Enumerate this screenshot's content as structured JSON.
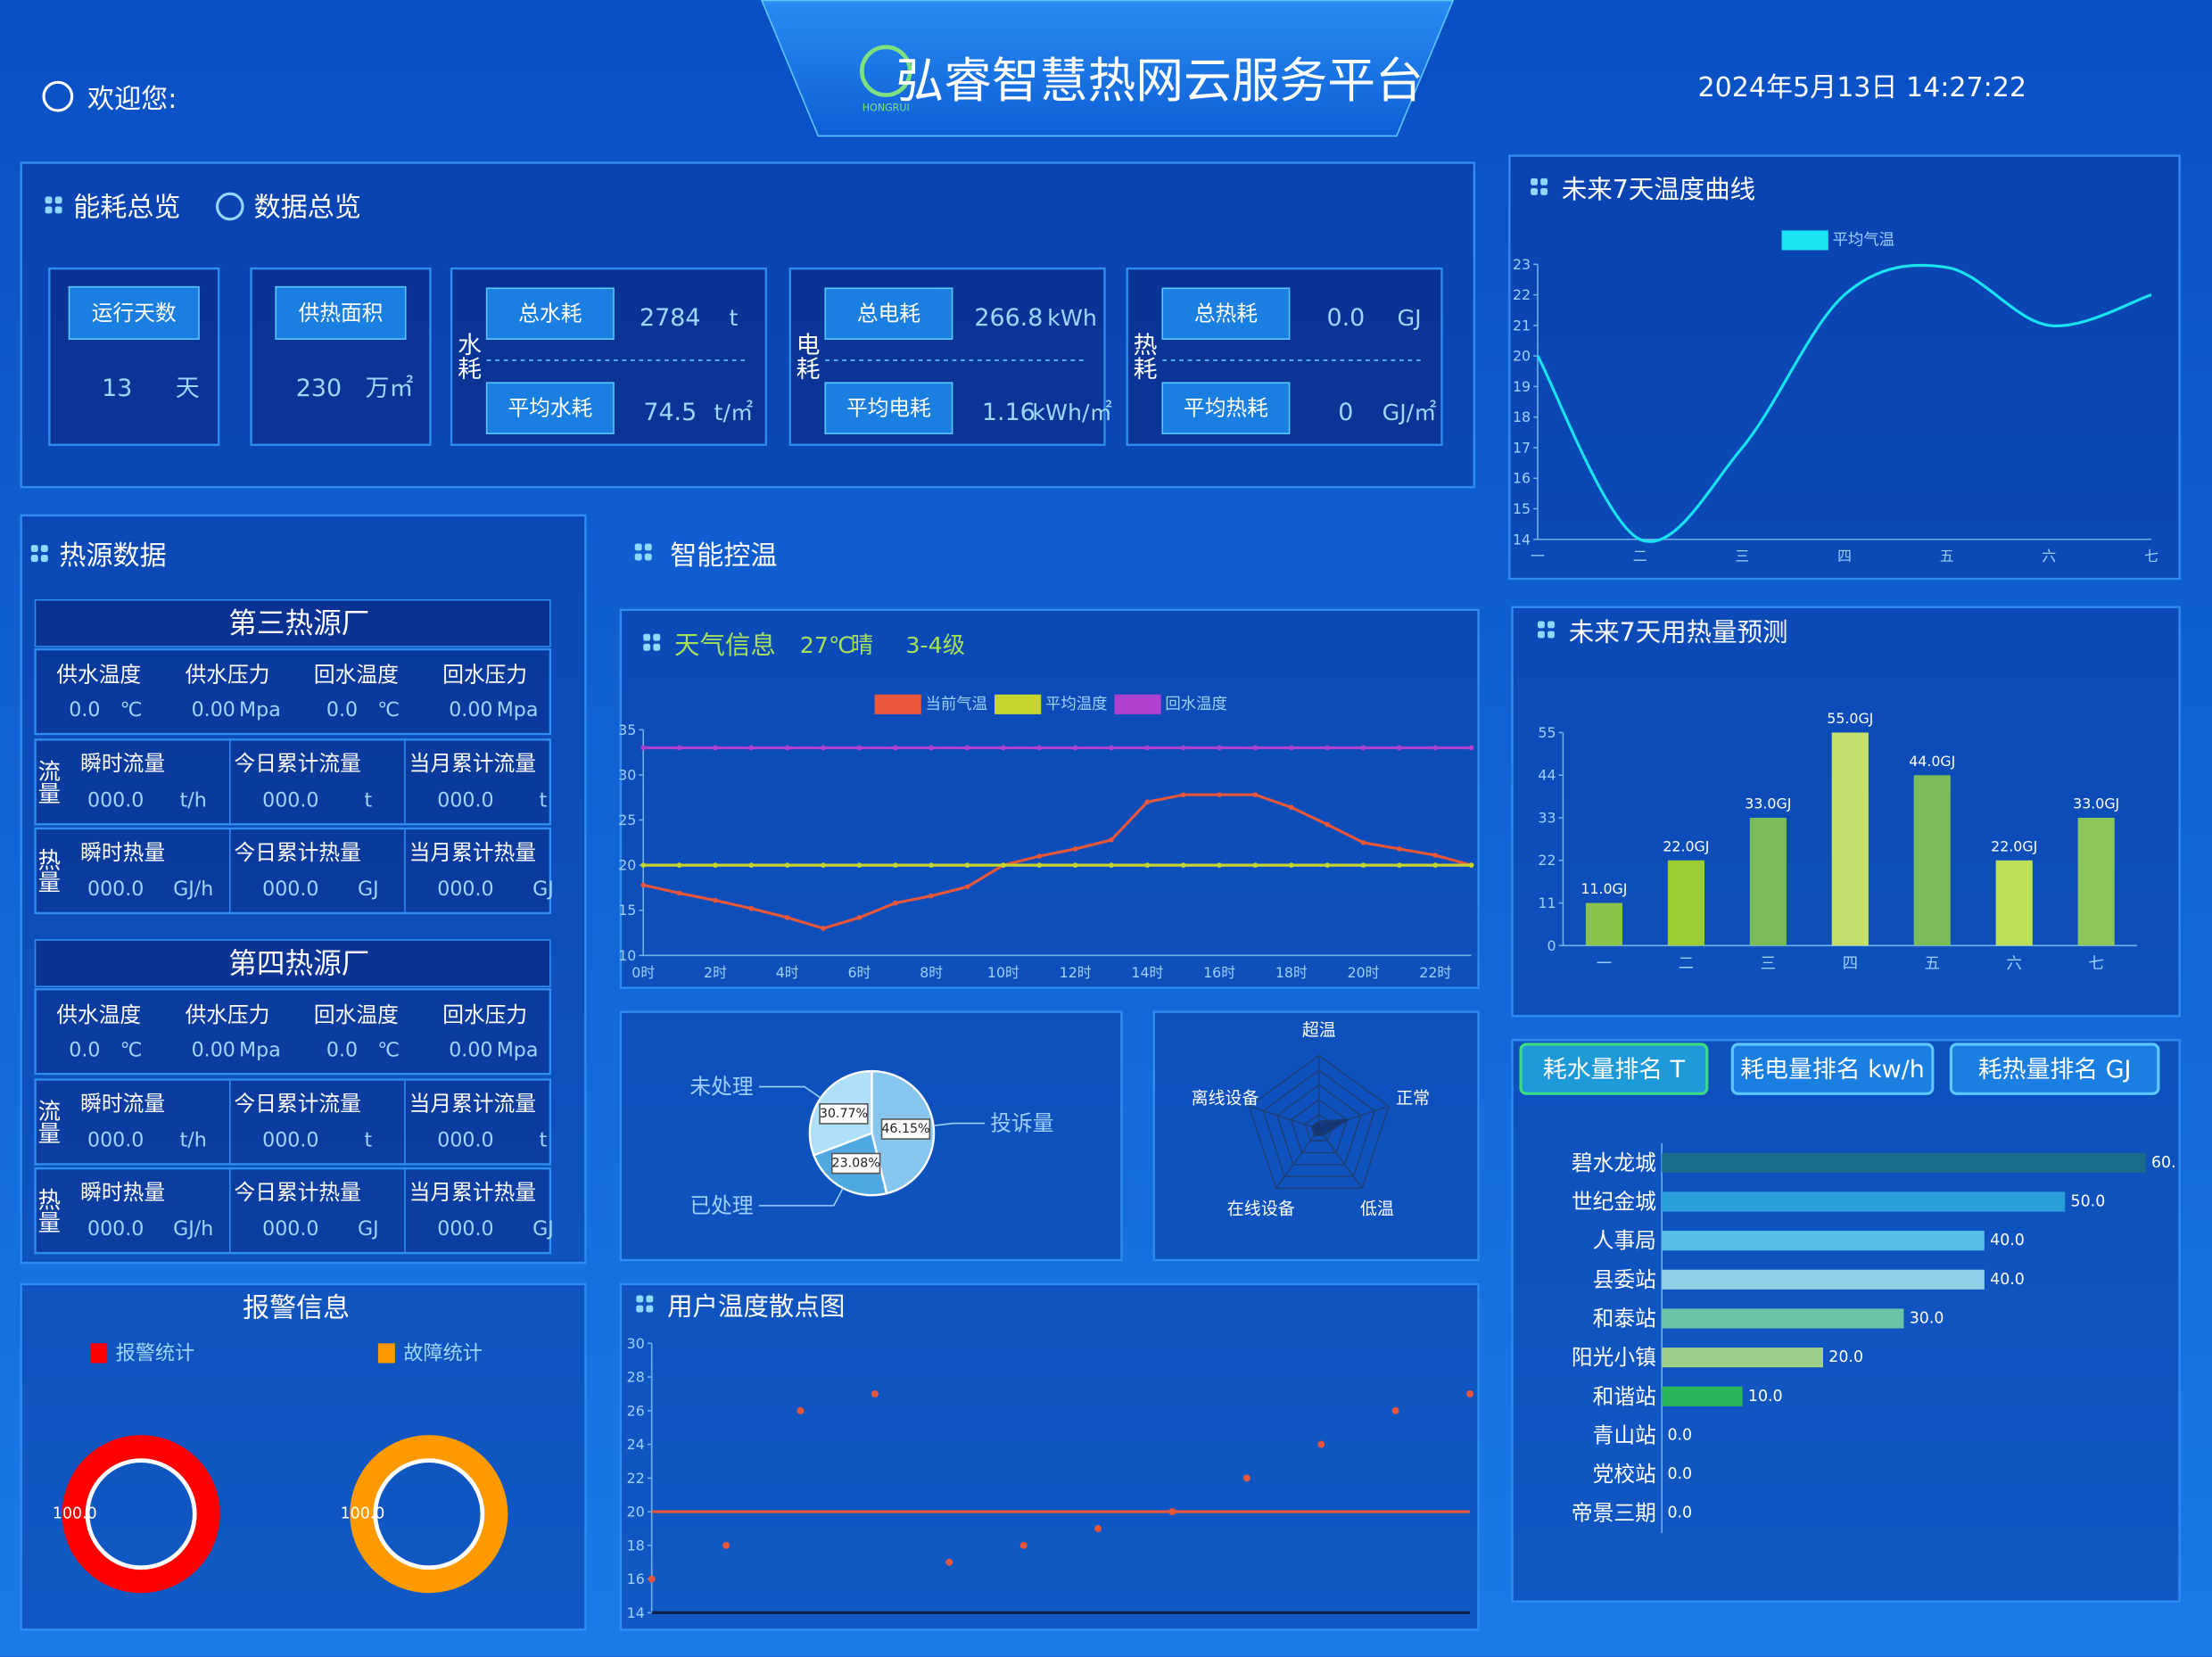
{
  "header": {
    "welcome": "欢迎您:",
    "title": "弘睿智慧热网云服务平台",
    "logo": "HONGRUI",
    "datetime": "2024年5月13日 14:27:22"
  },
  "panels": {
    "smart_title": "智能控温",
    "alarm_title": "报警信息"
  },
  "energy": {
    "tabs": [
      "能耗总览",
      "数据总览"
    ],
    "simple": [
      {
        "label": "运行天数",
        "value": 13,
        "unit": "天"
      },
      {
        "label": "供热面积",
        "value": 230,
        "unit": "万㎡"
      }
    ],
    "groups": [
      {
        "label": "水耗",
        "items": [
          {
            "label": "总水耗",
            "value": 2784,
            "unit": "t"
          },
          {
            "label": "平均水耗",
            "value": 74.5,
            "unit": "t/㎡"
          }
        ]
      },
      {
        "label": "电耗",
        "items": [
          {
            "label": "总电耗",
            "value": 266.8,
            "unit": "kWh"
          },
          {
            "label": "平均电耗",
            "value": 1.16,
            "unit": "kWh/㎡"
          }
        ]
      },
      {
        "label": "热耗",
        "items": [
          {
            "label": "总热耗",
            "value": "0.0",
            "unit": "GJ"
          },
          {
            "label": "平均热耗",
            "value": 0,
            "unit": "GJ/㎡"
          }
        ]
      }
    ]
  },
  "heat_source": {
    "title": "热源数据",
    "plants": [
      {
        "name": "第三热源厂",
        "params": [
          {
            "label": "供水温度",
            "value": "0.0",
            "unit": "℃"
          },
          {
            "label": "供水压力",
            "value": "0.00",
            "unit": "Mpa"
          },
          {
            "label": "回水温度",
            "value": "0.0",
            "unit": "℃"
          },
          {
            "label": "回水压力",
            "value": "0.00",
            "unit": "Mpa"
          }
        ],
        "rows": [
          {
            "label": "流量",
            "items": [
              {
                "label": "瞬时流量",
                "value": "000.0",
                "unit": "t/h"
              },
              {
                "label": "今日累计流量",
                "value": "000.0",
                "unit": "t"
              },
              {
                "label": "当月累计流量",
                "value": "000.0",
                "unit": "t"
              }
            ]
          },
          {
            "label": "热量",
            "items": [
              {
                "label": "瞬时热量",
                "value": "000.0",
                "unit": "GJ/h"
              },
              {
                "label": "今日累计热量",
                "value": "000.0",
                "unit": "GJ"
              },
              {
                "label": "当月累计热量",
                "value": "000.0",
                "unit": "GJ"
              }
            ]
          }
        ]
      },
      {
        "name": "第四热源厂",
        "params": [
          {
            "label": "供水温度",
            "value": "0.0",
            "unit": "℃"
          },
          {
            "label": "供水压力",
            "value": "0.00",
            "unit": "Mpa"
          },
          {
            "label": "回水温度",
            "value": "0.0",
            "unit": "℃"
          },
          {
            "label": "回水压力",
            "value": "0.00",
            "unit": "Mpa"
          }
        ],
        "rows": [
          {
            "label": "流量",
            "items": [
              {
                "label": "瞬时流量",
                "value": "000.0",
                "unit": "t/h"
              },
              {
                "label": "今日累计流量",
                "value": "000.0",
                "unit": "t"
              },
              {
                "label": "当月累计流量",
                "value": "000.0",
                "unit": "t"
              }
            ]
          },
          {
            "label": "热量",
            "items": [
              {
                "label": "瞬时热量",
                "value": "000.0",
                "unit": "GJ/h"
              },
              {
                "label": "今日累计热量",
                "value": "000.0",
                "unit": "GJ"
              },
              {
                "label": "当月累计热量",
                "value": "000.0",
                "unit": "GJ"
              }
            ]
          }
        ]
      }
    ]
  },
  "chart_data": [
    {
      "type": "line",
      "title": "未来7天温度曲线",
      "smooth": true,
      "categories": [
        "一",
        "二",
        "三",
        "四",
        "五",
        "六",
        "七"
      ],
      "series": [
        {
          "name": "平均气温",
          "color": "#19e3f0",
          "values": [
            20,
            14,
            17,
            22,
            22.9,
            21,
            22
          ]
        }
      ],
      "ylim": [
        14,
        23
      ],
      "yticks": [
        14,
        15,
        16,
        17,
        18,
        19,
        20,
        21,
        22,
        23
      ]
    },
    {
      "type": "bar",
      "title": "未来7天用热量预测",
      "categories": [
        "一",
        "二",
        "三",
        "四",
        "五",
        "六",
        "七"
      ],
      "values": [
        11,
        22,
        33,
        55,
        44,
        22,
        33
      ],
      "value_labels": [
        "11.0GJ",
        "22.0GJ",
        "33.0GJ",
        "55.0GJ",
        "44.0GJ",
        "22.0GJ",
        "33.0GJ"
      ],
      "colors": [
        "#8bc34a",
        "#9acd32",
        "#7cbb5a",
        "#c5e06c",
        "#7cbb5a",
        "#bde05a",
        "#8cc65a"
      ],
      "ylim": [
        0,
        55
      ],
      "yticks": [
        0,
        11,
        22,
        33,
        44,
        55
      ]
    },
    {
      "type": "line",
      "title": "天气信息",
      "weather": [
        "27℃",
        "晴",
        "3-4级"
      ],
      "markers": true,
      "categories": [
        "0时",
        null,
        "2时",
        null,
        "4时",
        null,
        "6时",
        null,
        "8时",
        null,
        "10时",
        null,
        "12时",
        null,
        "14时",
        null,
        "16时",
        null,
        "18时",
        null,
        "20时",
        null,
        "22时",
        null
      ],
      "series": [
        {
          "name": "当前气温",
          "color": "#e8573a",
          "values": [
            17.8,
            16.9,
            16.1,
            15.2,
            14.2,
            13,
            14.2,
            15.8,
            16.6,
            17.6,
            20,
            21,
            21.8,
            22.8,
            27,
            27.8,
            27.8,
            27.8,
            26.4,
            24.5,
            22.5,
            21.8,
            21.1,
            20
          ]
        },
        {
          "name": "平均温度",
          "color": "#c6d430",
          "values": [
            20,
            20,
            20,
            20,
            20,
            20,
            20,
            20,
            20,
            20,
            20,
            20,
            20,
            20,
            20,
            20,
            20,
            20,
            20,
            20,
            20,
            20,
            20,
            20
          ]
        },
        {
          "name": "回水温度",
          "color": "#b040d0",
          "values": [
            33,
            33,
            33,
            33,
            33,
            33,
            33,
            33,
            33,
            33,
            33,
            33,
            33,
            33,
            33,
            33,
            33,
            33,
            33,
            33,
            33,
            33,
            33,
            33
          ]
        }
      ],
      "ylim": [
        10,
        35
      ],
      "yticks": [
        10,
        15,
        20,
        25,
        30,
        35
      ]
    },
    {
      "type": "pie",
      "categories": [
        "投诉量",
        "已处理",
        "未处理"
      ],
      "values": [
        46.15,
        23.08,
        30.77
      ],
      "value_labels": [
        "46.15%",
        "23.08%",
        "30.77%"
      ],
      "colors": [
        "#87c6ef",
        "#4fa8e0",
        "#aee0fa"
      ]
    },
    {
      "type": "radar",
      "indicators": [
        "超温",
        "正常",
        "低温",
        "在线设备",
        "离线设备"
      ],
      "values": [
        0.5,
        2,
        0.5,
        0.5,
        0.5
      ],
      "rlim": [
        0,
        5
      ],
      "color": "#1a3a70"
    },
    {
      "type": "scatter",
      "title": "用户温度散点图",
      "categories": [
        null,
        null,
        null,
        null,
        null,
        null,
        null,
        null,
        null,
        null,
        null,
        null
      ],
      "values": [
        16,
        18,
        26,
        27,
        17,
        18,
        19,
        20,
        22,
        24,
        26,
        27
      ],
      "color": "#e8573a",
      "reference_line": {
        "value": 20,
        "color": "#e8573a"
      },
      "ylim": [
        14,
        30
      ],
      "yticks": [
        14,
        16,
        18,
        20,
        22,
        24,
        26,
        28,
        30
      ]
    },
    {
      "type": "pie",
      "donut": true,
      "categories": [
        "报警统计"
      ],
      "values": [
        100
      ],
      "value_labels": [
        "100.0"
      ],
      "colors": [
        "#ff0000"
      ]
    },
    {
      "type": "pie",
      "donut": true,
      "categories": [
        "故障统计"
      ],
      "values": [
        100
      ],
      "value_labels": [
        "100.0"
      ],
      "colors": [
        "#ff9900"
      ]
    },
    {
      "type": "bar",
      "orientation": "horizontal",
      "tabs": [
        "耗水量排名 T",
        "耗电量排名 kw/h",
        "耗热量排名 GJ"
      ],
      "categories": [
        "碧水龙城",
        "世纪金城",
        "人事局",
        "县委站",
        "和泰站",
        "阳光小镇",
        "和谐站",
        "青山站",
        "党校站",
        "帝景三期"
      ],
      "values": [
        60,
        50,
        40,
        40,
        30,
        20,
        10,
        0,
        0,
        0
      ],
      "value_labels": [
        "60.",
        "50.0",
        "40.0",
        "40.0",
        "30.0",
        "20.0",
        "10.0",
        "0.0",
        "0.0",
        "0.0"
      ],
      "colors": [
        "#1b6e8a",
        "#2aa0d8",
        "#55bde8",
        "#8fd0e8",
        "#6cc4a8",
        "#9ed08a",
        "#2bb55a",
        "#2bb55a",
        "#2bb55a",
        "#2bb55a"
      ],
      "xlim": [
        0,
        60
      ]
    }
  ]
}
